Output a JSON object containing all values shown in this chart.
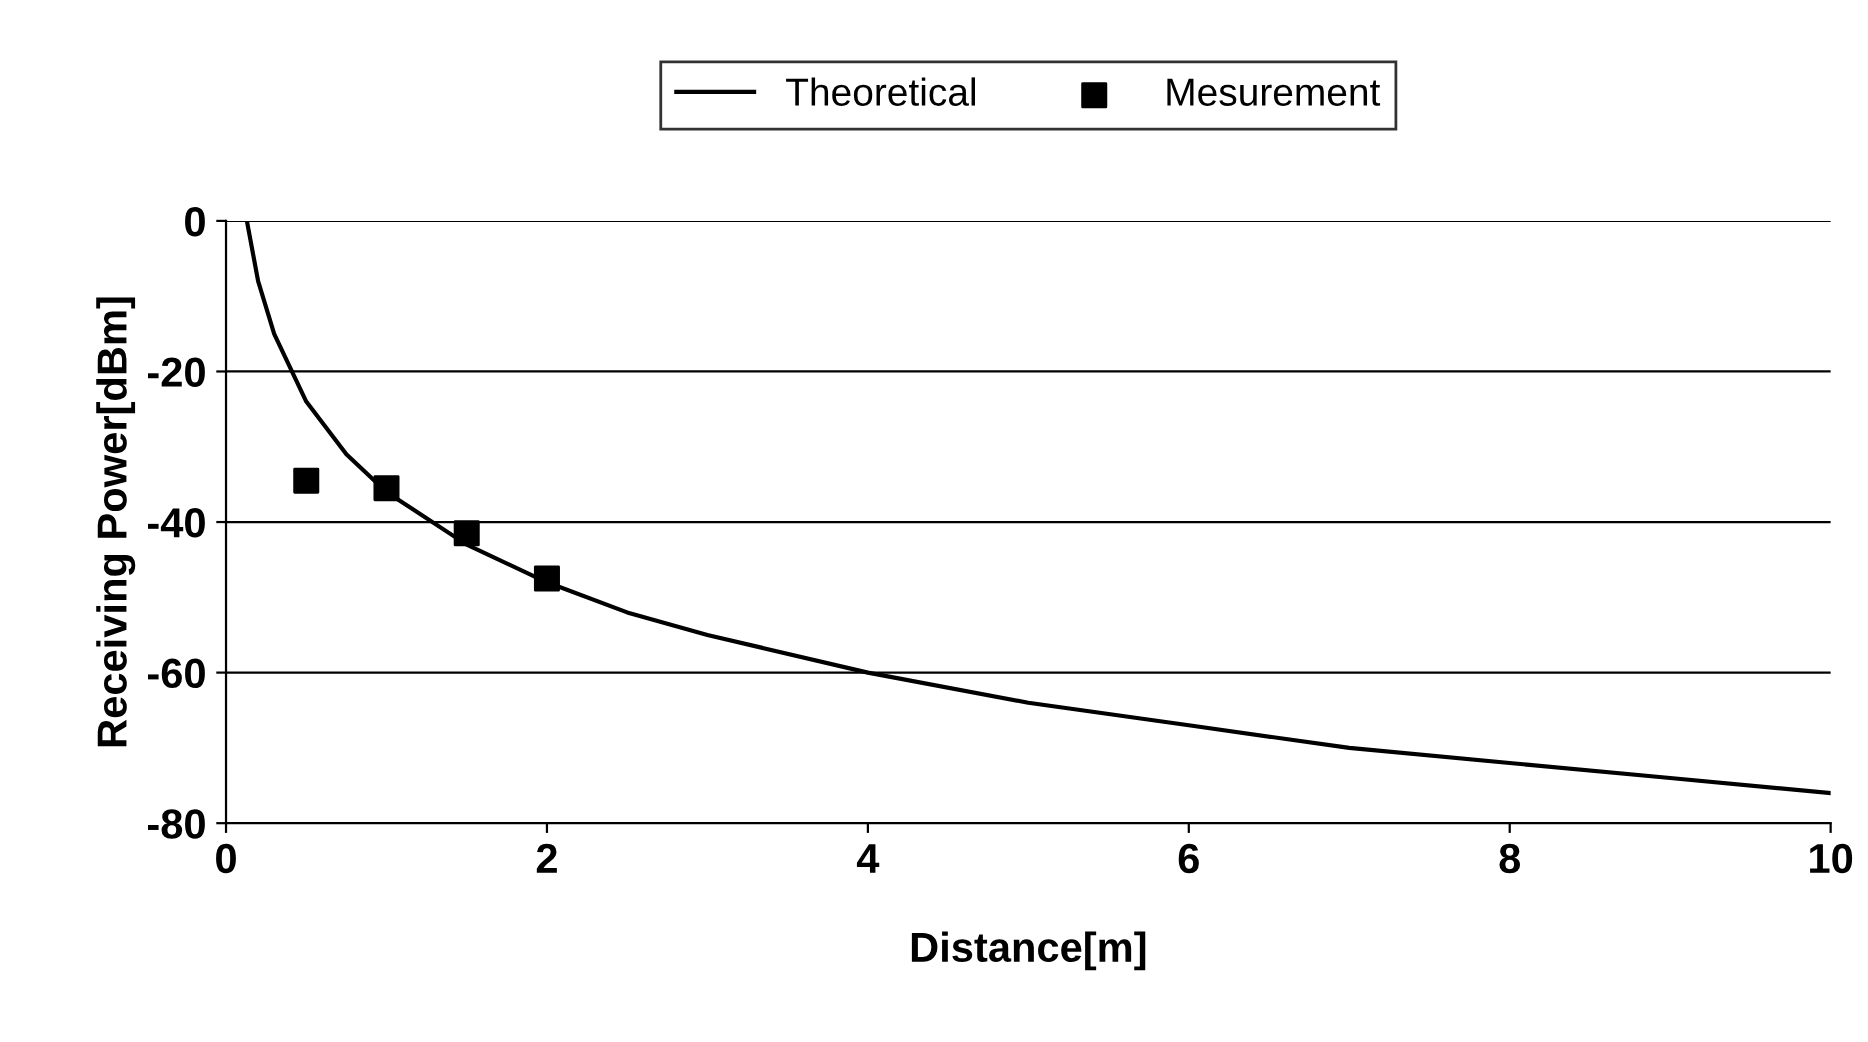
{
  "chart_data": {
    "type": "line",
    "xlabel": "Distance[m]",
    "ylabel": "Receiving Power[dBm]",
    "series": [
      {
        "name": "Theoretical",
        "color": "#000000",
        "marker": "none",
        "x": [
          0.13,
          0.2,
          0.3,
          0.5,
          0.75,
          1,
          1.5,
          2,
          2.5,
          3,
          4,
          5,
          6,
          7,
          8,
          9,
          10
        ],
        "values": [
          0,
          -8,
          -15,
          -24,
          -31,
          -36,
          -43,
          -48,
          -52,
          -55,
          -60,
          -64,
          -67,
          -70,
          -72,
          -74,
          -76
        ]
      },
      {
        "name": "Mesurement",
        "type": "scatter",
        "color": "#000000",
        "marker": "square",
        "x": [
          0.5,
          1,
          1.5,
          2
        ],
        "values": [
          -34.5,
          -35.5,
          -41.5,
          -47.5
        ]
      }
    ],
    "xlim": [
      0,
      10
    ],
    "xticks": [
      0,
      2,
      4,
      6,
      8,
      10
    ],
    "ylim": [
      -80,
      0
    ],
    "yticks": [
      -80,
      -60,
      -40,
      -20,
      0
    ],
    "grid": "y",
    "legend": "top"
  }
}
